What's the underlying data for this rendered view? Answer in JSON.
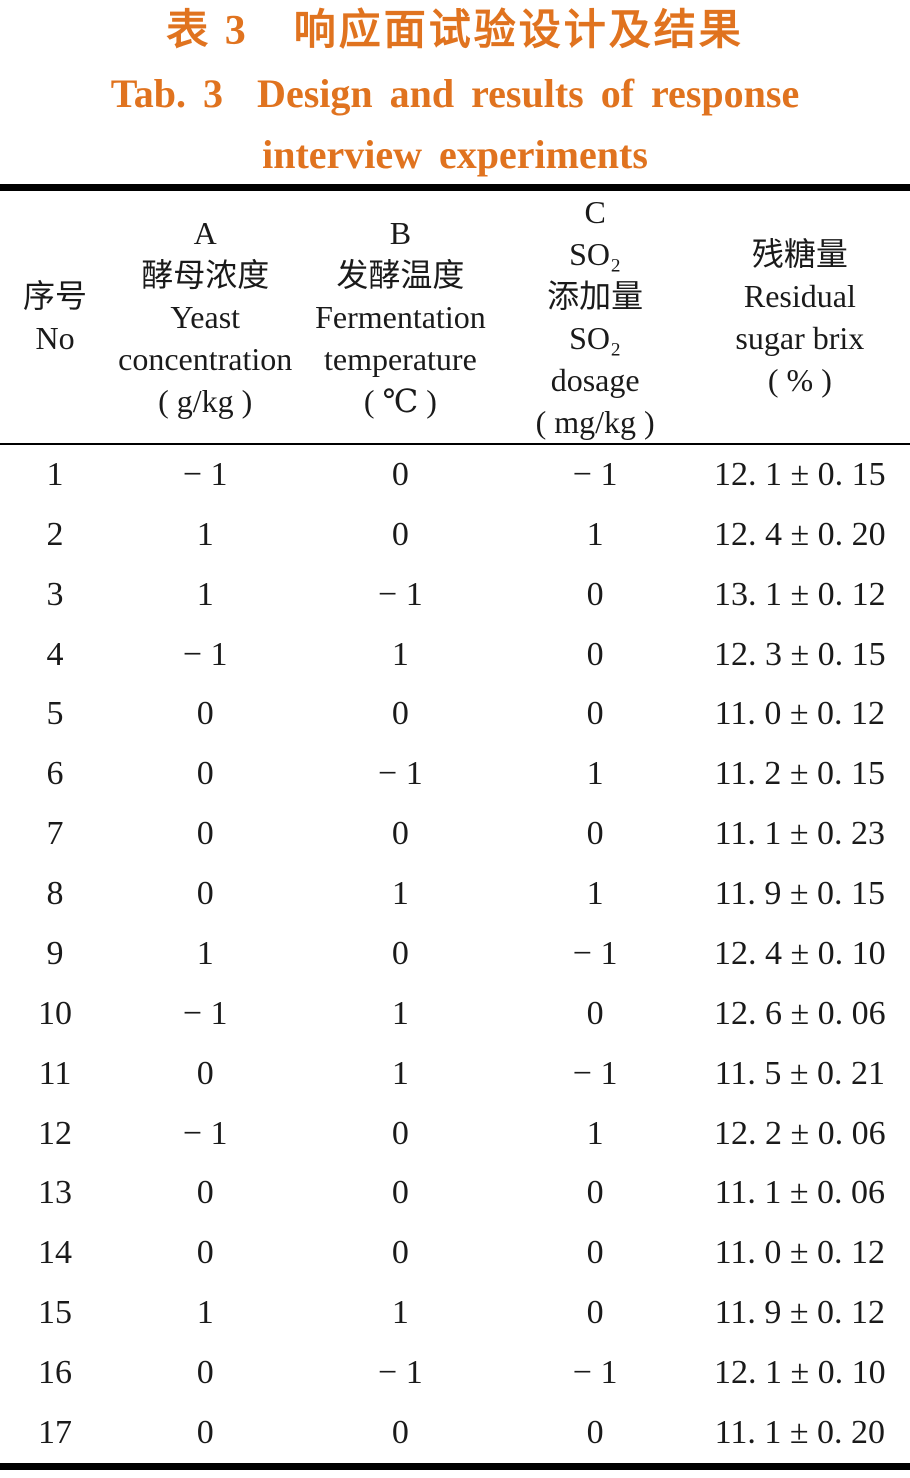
{
  "caption": {
    "chinese": "表 3　响应面试验设计及结果",
    "english_line1": "Tab. 3  Design and results of response",
    "english_line2": "interview experiments"
  },
  "table": {
    "columns": [
      {
        "key": "no",
        "lines": [
          "序号",
          "No"
        ]
      },
      {
        "key": "yeast-concentration",
        "lines": [
          "A",
          "酵母浓度",
          "Yeast",
          "concentration",
          "( g/kg )"
        ]
      },
      {
        "key": "fermentation-temperature",
        "lines": [
          "B",
          "发酵温度",
          "Fermentation",
          "temperature",
          "( ℃ )"
        ]
      },
      {
        "key": "so2-dosage",
        "lines": [
          "C",
          "SO₂",
          "添加量",
          "SO₂",
          "dosage",
          "( mg/kg )"
        ]
      },
      {
        "key": "residual-sugar-brix",
        "lines": [
          "残糖量",
          "Residual",
          "sugar brix",
          "( % )"
        ]
      }
    ],
    "rows": [
      [
        "1",
        "− 1",
        "0",
        "− 1",
        "12. 1 ± 0. 15"
      ],
      [
        "2",
        "1",
        "0",
        "1",
        "12. 4 ± 0. 20"
      ],
      [
        "3",
        "1",
        "− 1",
        "0",
        "13. 1 ± 0. 12"
      ],
      [
        "4",
        "− 1",
        "1",
        "0",
        "12. 3 ± 0. 15"
      ],
      [
        "5",
        "0",
        "0",
        "0",
        "11. 0 ± 0. 12"
      ],
      [
        "6",
        "0",
        "− 1",
        "1",
        "11. 2 ± 0. 15"
      ],
      [
        "7",
        "0",
        "0",
        "0",
        "11. 1 ± 0. 23"
      ],
      [
        "8",
        "0",
        "1",
        "1",
        "11. 9 ± 0. 15"
      ],
      [
        "9",
        "1",
        "0",
        "− 1",
        "12. 4 ± 0. 10"
      ],
      [
        "10",
        "− 1",
        "1",
        "0",
        "12. 6 ± 0. 06"
      ],
      [
        "11",
        "0",
        "1",
        "− 1",
        "11. 5 ± 0. 21"
      ],
      [
        "12",
        "− 1",
        "0",
        "1",
        "12. 2 ± 0. 06"
      ],
      [
        "13",
        "0",
        "0",
        "0",
        "11. 1 ± 0. 06"
      ],
      [
        "14",
        "0",
        "0",
        "0",
        "11. 0 ± 0. 12"
      ],
      [
        "15",
        "1",
        "1",
        "0",
        "11. 9 ± 0. 12"
      ],
      [
        "16",
        "0",
        "− 1",
        "− 1",
        "12. 1 ± 0. 10"
      ],
      [
        "17",
        "0",
        "0",
        "0",
        "11. 1 ± 0. 20"
      ]
    ]
  },
  "colors": {
    "accent": "#E0731F",
    "text": "#1A1A1A",
    "rule": "#000000",
    "background": "#FFFFFF"
  }
}
